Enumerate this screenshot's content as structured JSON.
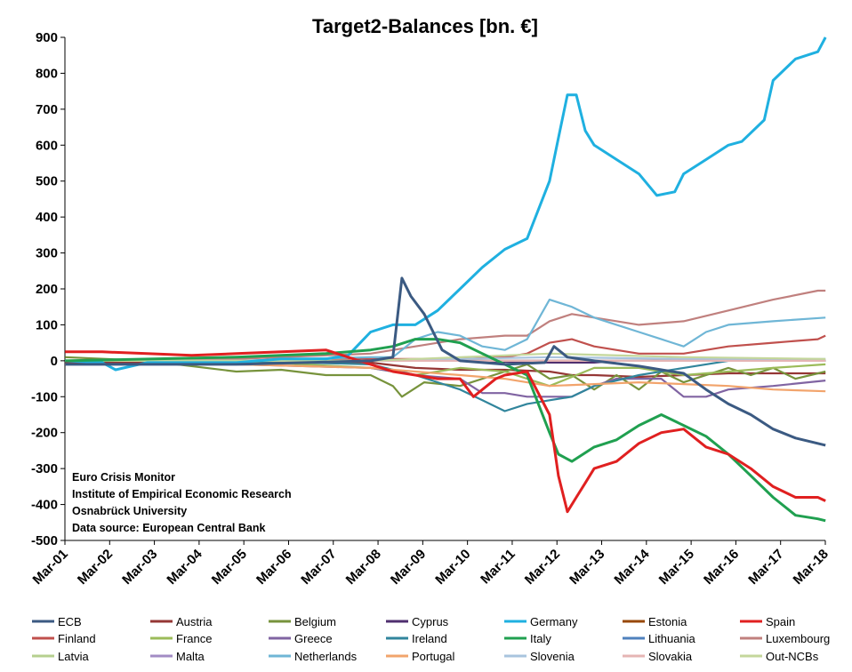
{
  "chart_data": {
    "type": "line",
    "title": "Target2-Balances [bn. €]",
    "xlabel": "",
    "ylabel": "",
    "ylim": [
      -500,
      900
    ],
    "xlim": [
      "2001-03",
      "2018-03"
    ],
    "yticks": [
      900,
      800,
      700,
      600,
      500,
      400,
      300,
      200,
      100,
      0,
      -100,
      -200,
      -300,
      -400,
      -500
    ],
    "xticks": [
      "Mar-01",
      "Mar-02",
      "Mar-03",
      "Mar-04",
      "Mar-05",
      "Mar-06",
      "Mar-07",
      "Mar-08",
      "Mar-09",
      "Mar-10",
      "Mar-11",
      "Mar-12",
      "Mar-13",
      "Mar-14",
      "Mar-15",
      "Mar-16",
      "Mar-17",
      "Mar-18"
    ],
    "grid": false,
    "legend_position": "bottom",
    "notes": [
      "Euro Crisis Monitor",
      "Institute of Empirical Economic Research",
      "Osnabrück University",
      "Data source: European Central Bank"
    ],
    "series": [
      {
        "name": "ECB",
        "color": "#3b5a82",
        "x": [
          2001.17,
          2005,
          2008,
          2008.5,
          2008.7,
          2008.9,
          2009.2,
          2009.6,
          2010,
          2011,
          2011.9,
          2012.1,
          2012.4,
          2013,
          2014,
          2015,
          2015.5,
          2016,
          2016.5,
          2017,
          2017.5,
          2018.17
        ],
        "y": [
          -10,
          -10,
          0,
          10,
          230,
          180,
          130,
          30,
          0,
          -10,
          -5,
          40,
          10,
          0,
          -15,
          -35,
          -80,
          -120,
          -150,
          -190,
          -215,
          -235
        ]
      },
      {
        "name": "Austria",
        "color": "#953735",
        "x": [
          2001.17,
          2005,
          2008,
          2009,
          2010,
          2011,
          2012,
          2012.5,
          2013,
          2014,
          2015,
          2016,
          2017,
          2018.17
        ],
        "y": [
          -5,
          -5,
          -5,
          -20,
          -25,
          -25,
          -30,
          -40,
          -40,
          -45,
          -40,
          -35,
          -35,
          -35
        ]
      },
      {
        "name": "Belgium",
        "color": "#77933c",
        "x": [
          2001.17,
          2003,
          2005,
          2006,
          2007,
          2008,
          2008.5,
          2008.7,
          2009.2,
          2010,
          2011,
          2011.5,
          2012,
          2012.5,
          2013,
          2013.5,
          2014,
          2014.5,
          2015,
          2016,
          2016.5,
          2017,
          2017.5,
          2018.17
        ],
        "y": [
          10,
          0,
          -30,
          -25,
          -40,
          -40,
          -70,
          -100,
          -60,
          -70,
          -30,
          -10,
          -50,
          -40,
          -80,
          -40,
          -80,
          -30,
          -60,
          -20,
          -40,
          -20,
          -50,
          -30
        ]
      },
      {
        "name": "Cyprus",
        "color": "#4f2f6f",
        "x": [
          2001.17,
          2005,
          2008,
          2010,
          2012,
          2013,
          2013.5,
          2015,
          2018.17
        ],
        "y": [
          0,
          0,
          0,
          0,
          -5,
          -5,
          0,
          0,
          0
        ]
      },
      {
        "name": "Germany",
        "color": "#1fb0e0",
        "x": [
          2001.17,
          2002,
          2002.3,
          2003,
          2005,
          2006,
          2007,
          2007.5,
          2008,
          2008.5,
          2009,
          2009.5,
          2010,
          2010.5,
          2011,
          2011.5,
          2012,
          2012.2,
          2012.4,
          2012.6,
          2012.8,
          2013,
          2013.5,
          2014,
          2014.4,
          2014.8,
          2015,
          2015.5,
          2016,
          2016.3,
          2016.8,
          2017,
          2017.5,
          2018,
          2018.17
        ],
        "y": [
          0,
          -5,
          -25,
          -5,
          -5,
          5,
          5,
          15,
          80,
          100,
          100,
          140,
          200,
          260,
          310,
          340,
          500,
          620,
          740,
          740,
          640,
          600,
          560,
          520,
          460,
          470,
          520,
          560,
          600,
          610,
          670,
          780,
          840,
          860,
          900
        ]
      },
      {
        "name": "Estonia",
        "color": "#984807",
        "x": [
          2001.17,
          2008,
          2011,
          2018.17
        ],
        "y": [
          0,
          0,
          0,
          0
        ]
      },
      {
        "name": "Spain",
        "color": "#e02020",
        "x": [
          2001.17,
          2002,
          2003,
          2004,
          2005,
          2006,
          2007,
          2008,
          2008.5,
          2009,
          2009.5,
          2010,
          2010.3,
          2010.8,
          2011,
          2011.5,
          2012,
          2012.2,
          2012.4,
          2012.6,
          2012.8,
          2013,
          2013.5,
          2014,
          2014.5,
          2015,
          2015.5,
          2016,
          2016.5,
          2017,
          2017.5,
          2018,
          2018.17
        ],
        "y": [
          25,
          25,
          20,
          15,
          20,
          25,
          30,
          -10,
          -30,
          -40,
          -50,
          -50,
          -100,
          -50,
          -40,
          -30,
          -150,
          -320,
          -420,
          -380,
          -340,
          -300,
          -280,
          -230,
          -200,
          -190,
          -240,
          -260,
          -300,
          -350,
          -380,
          -380,
          -390
        ]
      },
      {
        "name": "Finland",
        "color": "#c0504d",
        "x": [
          2001.17,
          2005,
          2008,
          2009,
          2010,
          2011,
          2011.5,
          2012,
          2012.5,
          2013,
          2014,
          2015,
          2016,
          2017,
          2018,
          2018.17
        ],
        "y": [
          0,
          0,
          5,
          5,
          5,
          10,
          20,
          50,
          60,
          40,
          20,
          20,
          40,
          50,
          60,
          70
        ]
      },
      {
        "name": "France",
        "color": "#9bbb59",
        "x": [
          2001.17,
          2005,
          2008,
          2009,
          2010,
          2011,
          2012,
          2013,
          2014,
          2015,
          2016,
          2017,
          2018.17
        ],
        "y": [
          0,
          0,
          -20,
          -40,
          -20,
          -30,
          -70,
          -20,
          -20,
          -40,
          -30,
          -20,
          -10
        ]
      },
      {
        "name": "Greece",
        "color": "#8064a2",
        "x": [
          2001.17,
          2005,
          2008,
          2009,
          2010,
          2010.5,
          2011,
          2011.5,
          2012,
          2012.5,
          2013,
          2013.5,
          2014,
          2014.5,
          2015,
          2015.5,
          2016,
          2017,
          2018.17
        ],
        "y": [
          -10,
          -10,
          -20,
          -40,
          -50,
          -90,
          -90,
          -100,
          -100,
          -100,
          -70,
          -50,
          -50,
          -50,
          -100,
          -100,
          -80,
          -70,
          -55
        ]
      },
      {
        "name": "Ireland",
        "color": "#31859c",
        "x": [
          2001.17,
          2005,
          2008,
          2009,
          2010,
          2010.5,
          2011,
          2011.5,
          2012,
          2012.5,
          2013,
          2014,
          2015,
          2016,
          2018.17
        ],
        "y": [
          0,
          0,
          -10,
          -40,
          -80,
          -110,
          -140,
          -120,
          -110,
          -100,
          -70,
          -40,
          -20,
          0,
          0
        ]
      },
      {
        "name": "Italy",
        "color": "#20a050",
        "x": [
          2001.17,
          2005,
          2007,
          2008,
          2008.5,
          2009,
          2009.5,
          2010,
          2010.5,
          2011,
          2011.5,
          2012,
          2012.2,
          2012.5,
          2013,
          2013.5,
          2014,
          2014.5,
          2015,
          2015.5,
          2016,
          2016.5,
          2017,
          2017.5,
          2018,
          2018.17
        ],
        "y": [
          0,
          10,
          20,
          30,
          40,
          60,
          60,
          50,
          20,
          -10,
          -40,
          -200,
          -260,
          -280,
          -240,
          -220,
          -180,
          -150,
          -180,
          -210,
          -260,
          -320,
          -380,
          -430,
          -440,
          -445
        ]
      },
      {
        "name": "Lithuania",
        "color": "#4f81bd",
        "x": [
          2001.17,
          2008,
          2015,
          2018.17
        ],
        "y": [
          0,
          0,
          0,
          0
        ]
      },
      {
        "name": "Luxembourg",
        "color": "#c0807e",
        "x": [
          2001.17,
          2005,
          2008,
          2009,
          2010,
          2011,
          2011.5,
          2012,
          2012.5,
          2013,
          2014,
          2015,
          2016,
          2017,
          2018,
          2018.17
        ],
        "y": [
          0,
          5,
          20,
          40,
          60,
          70,
          70,
          110,
          130,
          120,
          100,
          110,
          140,
          170,
          195,
          195
        ]
      },
      {
        "name": "Latvia",
        "color": "#b6d08f",
        "x": [
          2001.17,
          2008,
          2014,
          2018.17
        ],
        "y": [
          0,
          0,
          0,
          0
        ]
      },
      {
        "name": "Malta",
        "color": "#a28cc4",
        "x": [
          2001.17,
          2008,
          2015,
          2018.17
        ],
        "y": [
          0,
          0,
          0,
          0
        ]
      },
      {
        "name": "Netherlands",
        "color": "#6fb6d6",
        "x": [
          2001.17,
          2005,
          2008,
          2008.5,
          2009,
          2009.5,
          2010,
          2010.5,
          2011,
          2011.5,
          2012,
          2012.5,
          2013,
          2013.5,
          2014,
          2014.5,
          2015,
          2015.5,
          2016,
          2017,
          2018.17
        ],
        "y": [
          0,
          0,
          10,
          10,
          60,
          80,
          70,
          40,
          30,
          60,
          170,
          150,
          120,
          100,
          80,
          60,
          40,
          80,
          100,
          110,
          120
        ]
      },
      {
        "name": "Portugal",
        "color": "#f2a46c",
        "x": [
          2001.17,
          2005,
          2008,
          2009,
          2010,
          2011,
          2012,
          2013,
          2014,
          2015,
          2016,
          2017,
          2018.17
        ],
        "y": [
          -10,
          -10,
          -20,
          -30,
          -40,
          -50,
          -70,
          -65,
          -60,
          -65,
          -70,
          -80,
          -85
        ]
      },
      {
        "name": "Slovenia",
        "color": "#a9c4de",
        "x": [
          2001.17,
          2008,
          2012,
          2015,
          2018.17
        ],
        "y": [
          0,
          0,
          10,
          5,
          5
        ]
      },
      {
        "name": "Slovakia",
        "color": "#e5b5b4",
        "x": [
          2001.17,
          2008,
          2012,
          2015,
          2018.17
        ],
        "y": [
          0,
          0,
          0,
          0,
          0
        ]
      },
      {
        "name": "Out-NCBs",
        "color": "#c4d79b",
        "x": [
          2001.17,
          2008,
          2012,
          2015,
          2018.17
        ],
        "y": [
          0,
          0,
          20,
          10,
          5
        ]
      }
    ]
  }
}
